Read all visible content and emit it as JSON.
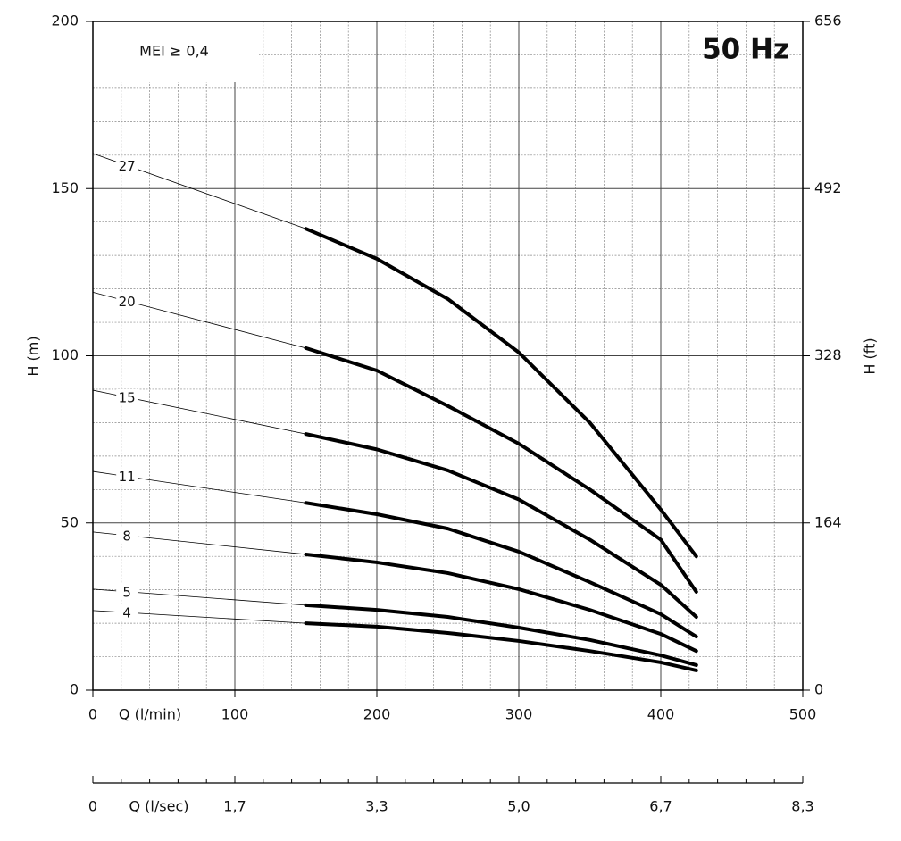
{
  "chart_data": {
    "type": "line",
    "title": "50 Hz",
    "annotation": "MEI ≥ 0,4",
    "xlabel": "Q (l/min)",
    "ylabel": "H (m)",
    "y2label": "H (ft)",
    "x2label": "Q (l/sec)",
    "xlim": [
      0,
      500
    ],
    "xticks": [
      0,
      100,
      200,
      300,
      400,
      500
    ],
    "x2lim": [
      0,
      8.3333
    ],
    "x2ticks": [
      0,
      {
        "value": 1.6667,
        "label": "1,7"
      },
      {
        "value": 3.3333,
        "label": "3,3"
      },
      {
        "value": 5,
        "label": "5,0"
      },
      {
        "value": 6.6667,
        "label": "6,7"
      },
      {
        "value": 8.3333,
        "label": "8,3"
      }
    ],
    "ylim": [
      0,
      200
    ],
    "yticks": [
      0,
      50,
      100,
      150,
      200
    ],
    "y2lim": [
      0,
      656
    ],
    "y2ticks": [
      0,
      164,
      328,
      492,
      656
    ],
    "grid": true,
    "x": [
      0,
      150,
      200,
      250,
      300,
      350,
      400,
      425
    ],
    "series": [
      {
        "name": "27",
        "color": "#000000",
        "values": [
          160.5,
          138,
          129,
          117,
          101,
          80,
          54,
          40
        ]
      },
      {
        "name": "20",
        "color": "#000000",
        "values": [
          119,
          102.3,
          95.6,
          85,
          73.7,
          60,
          45,
          29.4
        ]
      },
      {
        "name": "15",
        "color": "#000000",
        "values": [
          89.7,
          76.6,
          72,
          65.7,
          57,
          45,
          31.5,
          21.9
        ]
      },
      {
        "name": "11",
        "color": "#000000",
        "values": [
          65.4,
          56,
          52.6,
          48.3,
          41.4,
          32.3,
          22.7,
          16
        ]
      },
      {
        "name": "8",
        "color": "#000000",
        "values": [
          47.3,
          40.6,
          38.2,
          35,
          30.2,
          24,
          16.8,
          11.7
        ]
      },
      {
        "name": "5",
        "color": "#000000",
        "values": [
          30.2,
          25.4,
          24,
          21.9,
          18.7,
          15,
          10.4,
          7.5
        ]
      },
      {
        "name": "4",
        "color": "#000000",
        "values": [
          23.8,
          20,
          19,
          17.1,
          14.7,
          11.7,
          8.3,
          5.9
        ]
      }
    ]
  }
}
